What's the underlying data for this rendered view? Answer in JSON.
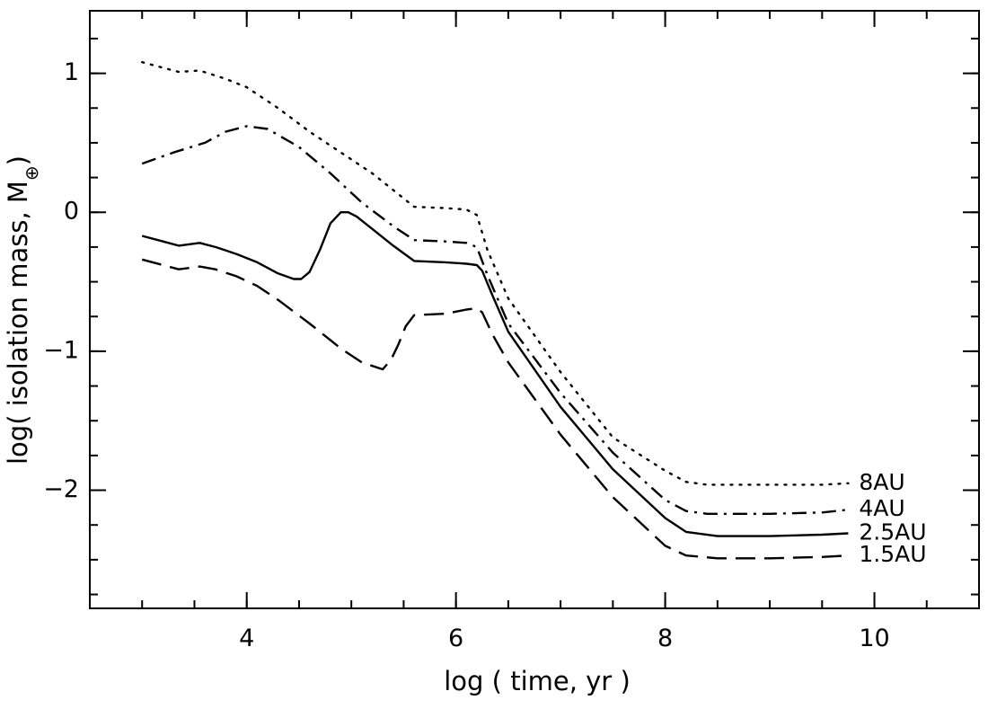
{
  "chart_data": {
    "type": "line",
    "xlabel": "log ( time, yr )",
    "ylabel_prefix": "log( isolation mass, M",
    "ylabel_subscript": "⊕",
    "ylabel_suffix": ")",
    "xlim": [
      2.5,
      11.0
    ],
    "ylim": [
      -2.85,
      1.45
    ],
    "x_ticks": [
      4,
      6,
      8,
      10
    ],
    "x_tick_labels": [
      "4",
      "6",
      "8",
      "10"
    ],
    "y_ticks": [
      1,
      0,
      -1,
      -2
    ],
    "y_tick_labels": [
      "1",
      "0",
      "−1",
      "−2"
    ],
    "x_minor_step": 0.5,
    "y_minor_step": 0.25,
    "series": [
      {
        "name": "8AU",
        "label": "8AU",
        "style": "dotted",
        "x": [
          3.0,
          3.2,
          3.35,
          3.55,
          3.8,
          4.0,
          4.3,
          4.6,
          4.9,
          5.2,
          5.45,
          5.6,
          5.9,
          6.1,
          6.2,
          6.3,
          6.5,
          7.0,
          7.5,
          8.0,
          8.2,
          8.4,
          9.0,
          9.5,
          9.75
        ],
        "y": [
          1.08,
          1.04,
          1.01,
          1.02,
          0.96,
          0.9,
          0.75,
          0.58,
          0.43,
          0.28,
          0.13,
          0.04,
          0.03,
          0.02,
          -0.02,
          -0.27,
          -0.62,
          -1.15,
          -1.62,
          -1.86,
          -1.94,
          -1.96,
          -1.96,
          -1.96,
          -1.95
        ]
      },
      {
        "name": "4AU",
        "label": "4AU",
        "style": "dash-dot",
        "x": [
          3.0,
          3.3,
          3.6,
          3.8,
          4.0,
          4.2,
          4.5,
          4.8,
          5.1,
          5.4,
          5.6,
          5.9,
          6.1,
          6.2,
          6.3,
          6.5,
          7.0,
          7.5,
          8.0,
          8.2,
          8.4,
          9.0,
          9.5,
          9.75
        ],
        "y": [
          0.35,
          0.43,
          0.5,
          0.58,
          0.62,
          0.6,
          0.47,
          0.28,
          0.07,
          -0.1,
          -0.2,
          -0.21,
          -0.22,
          -0.25,
          -0.45,
          -0.8,
          -1.3,
          -1.73,
          -2.07,
          -2.15,
          -2.17,
          -2.17,
          -2.16,
          -2.14
        ]
      },
      {
        "name": "2.5AU",
        "label": "2.5AU",
        "style": "solid",
        "x": [
          3.0,
          3.2,
          3.35,
          3.55,
          3.7,
          3.9,
          4.1,
          4.3,
          4.45,
          4.52,
          4.6,
          4.7,
          4.8,
          4.9,
          4.97,
          5.05,
          5.2,
          5.4,
          5.6,
          5.9,
          6.1,
          6.2,
          6.25,
          6.35,
          6.5,
          7.0,
          7.5,
          8.0,
          8.2,
          8.5,
          9.0,
          9.5,
          9.75
        ],
        "y": [
          -0.17,
          -0.21,
          -0.24,
          -0.22,
          -0.25,
          -0.3,
          -0.36,
          -0.44,
          -0.48,
          -0.48,
          -0.43,
          -0.27,
          -0.08,
          0.0,
          0.0,
          -0.03,
          -0.12,
          -0.24,
          -0.35,
          -0.36,
          -0.37,
          -0.38,
          -0.42,
          -0.6,
          -0.86,
          -1.4,
          -1.85,
          -2.2,
          -2.3,
          -2.33,
          -2.33,
          -2.32,
          -2.31
        ]
      },
      {
        "name": "1.5AU",
        "label": "1.5AU",
        "style": "dashed",
        "x": [
          3.0,
          3.2,
          3.35,
          3.55,
          3.7,
          3.9,
          4.1,
          4.3,
          4.6,
          4.9,
          5.1,
          5.3,
          5.38,
          5.45,
          5.52,
          5.6,
          5.9,
          6.1,
          6.2,
          6.25,
          6.35,
          6.5,
          7.0,
          7.5,
          8.0,
          8.2,
          8.5,
          9.0,
          9.5,
          9.75
        ],
        "y": [
          -0.34,
          -0.38,
          -0.41,
          -0.39,
          -0.41,
          -0.46,
          -0.53,
          -0.63,
          -0.8,
          -0.98,
          -1.08,
          -1.13,
          -1.06,
          -0.95,
          -0.82,
          -0.74,
          -0.73,
          -0.7,
          -0.69,
          -0.72,
          -0.88,
          -1.08,
          -1.6,
          -2.05,
          -2.4,
          -2.47,
          -2.49,
          -2.49,
          -2.48,
          -2.47
        ]
      }
    ]
  }
}
